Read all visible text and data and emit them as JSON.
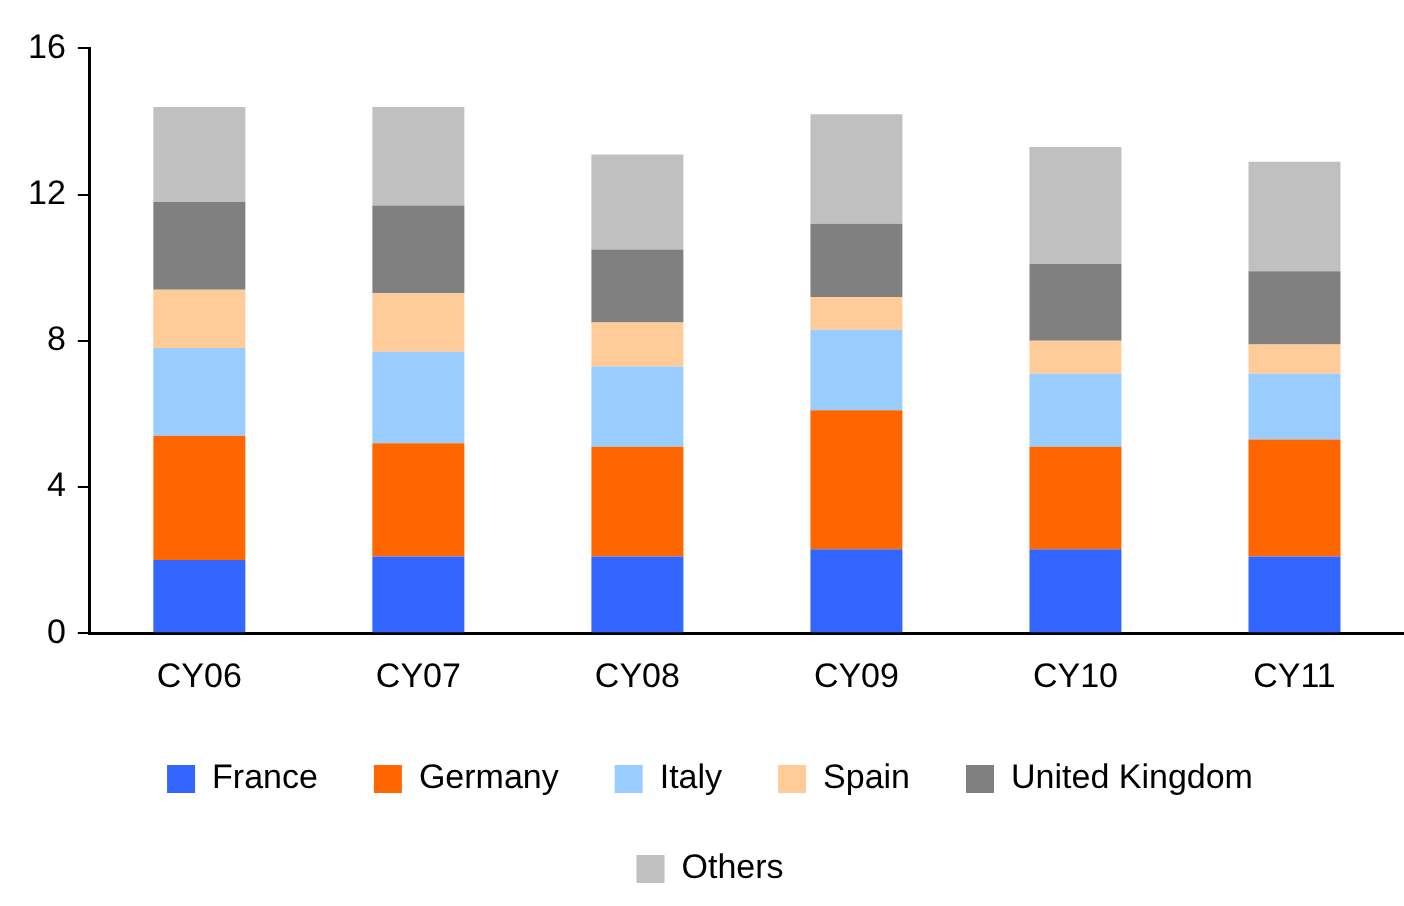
{
  "chart_data": {
    "type": "bar",
    "stacked": true,
    "categories": [
      "CY06",
      "CY07",
      "CY08",
      "CY09",
      "CY10",
      "CY11"
    ],
    "series": [
      {
        "name": "France",
        "color": "#3366ff",
        "values": [
          2.0,
          2.1,
          2.1,
          2.3,
          2.3,
          2.1
        ]
      },
      {
        "name": "Germany",
        "color": "#ff6600",
        "values": [
          3.4,
          3.1,
          3.0,
          3.8,
          2.8,
          3.2
        ]
      },
      {
        "name": "Italy",
        "color": "#99ccff",
        "values": [
          2.4,
          2.5,
          2.2,
          2.2,
          2.0,
          1.8
        ]
      },
      {
        "name": "Spain",
        "color": "#ffcc99",
        "values": [
          1.6,
          1.6,
          1.2,
          0.9,
          0.9,
          0.8
        ]
      },
      {
        "name": "United Kingdom",
        "color": "#808080",
        "values": [
          2.4,
          2.4,
          2.0,
          2.0,
          2.1,
          2.0
        ]
      },
      {
        "name": "Others",
        "color": "#c0c0c0",
        "values": [
          2.6,
          2.7,
          2.6,
          3.0,
          3.2,
          3.0
        ]
      }
    ],
    "ylim": [
      0,
      16
    ],
    "yticks": [
      0,
      4,
      8,
      12,
      16
    ],
    "grid": false,
    "legend": "bottom"
  }
}
